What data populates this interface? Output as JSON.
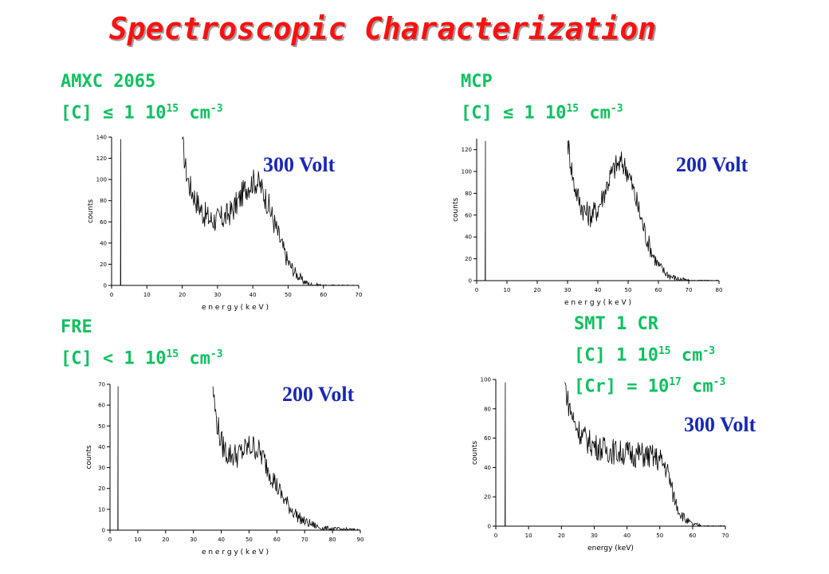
{
  "title": "Spectroscopic Characterization",
  "panels": [
    {
      "name": "AMXC 2065",
      "c_prefix": "[C] ",
      "relation": "≤",
      "c_value": " 1  10",
      "c_exp": "15",
      "c_unit": " cm",
      "c_unit_exp": "-3",
      "voltage": "300 Volt"
    },
    {
      "name": "MCP",
      "c_prefix": "[C] ",
      "relation": "≤",
      "c_value": " 1  10",
      "c_exp": "15",
      "c_unit": " cm",
      "c_unit_exp": "-3",
      "voltage": "200 Volt"
    },
    {
      "name": "FRE",
      "c_prefix": "[C] ",
      "relation": "<",
      "c_value": " 1  10",
      "c_exp": "15",
      "c_unit": " cm",
      "c_unit_exp": "-3",
      "voltage": "200 Volt"
    },
    {
      "name": "SMT 1 CR",
      "c_prefix": "[C]  ",
      "relation": "",
      "c_value": " 1  10",
      "c_exp": "15",
      "c_unit": " cm",
      "c_unit_exp": "-3",
      "cr_prefix": "[Cr] = 10",
      "cr_exp": "17",
      "cr_unit": " cm",
      "cr_unit_exp": "-3",
      "voltage": "300 Volt"
    }
  ],
  "chart_data": [
    {
      "type": "line",
      "title": "",
      "xlabel": "e n e r g y  ( k e V )",
      "ylabel": "counts",
      "xlim": [
        0,
        70
      ],
      "ylim": [
        0,
        140
      ],
      "xticks": [
        0,
        10,
        20,
        30,
        40,
        50,
        60,
        70
      ],
      "yticks": [
        0,
        20,
        40,
        60,
        80,
        100,
        120,
        140
      ],
      "x": [
        2.5,
        2.6,
        20,
        21,
        22,
        24,
        26,
        28,
        30,
        32,
        34,
        36,
        38,
        40,
        41,
        42,
        44,
        46,
        48,
        50,
        52,
        54,
        56,
        58,
        60,
        65,
        70
      ],
      "y": [
        0,
        138,
        138,
        110,
        95,
        80,
        68,
        62,
        62,
        64,
        70,
        80,
        92,
        98,
        98,
        95,
        80,
        60,
        40,
        22,
        12,
        5,
        1,
        0.5,
        0,
        0,
        0
      ]
    },
    {
      "type": "line",
      "title": "",
      "xlabel": "e n e r g y  ( k e V )",
      "ylabel": "counts",
      "xlim": [
        0,
        80
      ],
      "ylim": [
        0,
        130
      ],
      "xticks": [
        0,
        10,
        20,
        30,
        40,
        50,
        60,
        70,
        80
      ],
      "yticks": [
        0,
        20,
        40,
        60,
        80,
        100,
        120
      ],
      "x": [
        2.8,
        2.9,
        30,
        31,
        32,
        34,
        36,
        38,
        40,
        42,
        44,
        46,
        48,
        50,
        52,
        54,
        56,
        58,
        60,
        62,
        64,
        66,
        68,
        70,
        80
      ],
      "y": [
        0,
        128,
        128,
        110,
        90,
        72,
        62,
        60,
        66,
        80,
        95,
        105,
        108,
        100,
        80,
        60,
        40,
        25,
        14,
        8,
        4,
        2,
        1,
        0,
        0
      ]
    },
    {
      "type": "line",
      "title": "",
      "xlabel": "e n e r g y  ( k e V )",
      "ylabel": "counts",
      "xlim": [
        0,
        90
      ],
      "ylim": [
        0,
        70
      ],
      "xticks": [
        0,
        10,
        20,
        30,
        40,
        50,
        60,
        70,
        80,
        90
      ],
      "yticks": [
        0,
        10,
        20,
        30,
        40,
        50,
        60,
        70
      ],
      "x": [
        2.8,
        2.9,
        37,
        38,
        40,
        42,
        44,
        46,
        48,
        50,
        52,
        54,
        56,
        58,
        60,
        62,
        64,
        66,
        68,
        70,
        72,
        74,
        76,
        80,
        85,
        90
      ],
      "y": [
        0,
        69,
        69,
        55,
        42,
        37,
        36,
        36,
        38,
        40,
        40,
        37,
        32,
        27,
        21,
        16,
        12,
        9,
        6,
        4,
        3,
        2,
        1,
        0.5,
        0.3,
        0
      ]
    },
    {
      "type": "line",
      "title": "",
      "xlabel": "energy (keV)",
      "ylabel": "counts",
      "xlim": [
        0,
        70
      ],
      "ylim": [
        0,
        100
      ],
      "xticks": [
        0,
        10,
        20,
        30,
        40,
        50,
        60,
        70
      ],
      "yticks": [
        0,
        20,
        40,
        60,
        80,
        100
      ],
      "x": [
        2.8,
        2.9,
        21,
        22,
        24,
        26,
        28,
        30,
        32,
        34,
        36,
        38,
        40,
        42,
        44,
        46,
        48,
        50,
        52,
        53,
        54,
        56,
        58,
        60,
        62,
        64,
        70
      ],
      "y": [
        0,
        98,
        98,
        85,
        70,
        63,
        58,
        55,
        53,
        52,
        51,
        50,
        50,
        49,
        49,
        48,
        47,
        45,
        40,
        32,
        22,
        10,
        4,
        1,
        0.5,
        0,
        0
      ]
    }
  ]
}
